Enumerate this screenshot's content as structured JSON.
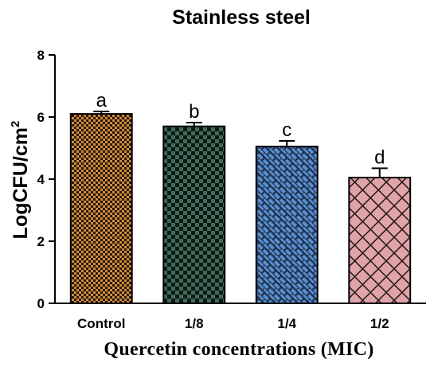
{
  "chart_data": {
    "type": "bar",
    "title": "Stainless steel",
    "xlabel": "Quercetin concentrations (MIC)",
    "ylabel": "LogCFU/cm",
    "ylabel_superscript": "2",
    "ylim": [
      0,
      8
    ],
    "yticks": [
      "0",
      "2",
      "4",
      "6",
      "8"
    ],
    "categories": [
      "Control",
      "1/8",
      "1/4",
      "1/2"
    ],
    "values": [
      6.1,
      5.7,
      5.05,
      4.05
    ],
    "errors": [
      0.08,
      0.12,
      0.18,
      0.3
    ],
    "significance_letters": [
      "a",
      "b",
      "c",
      "d"
    ],
    "bar_colors": [
      "#d08a3c",
      "#3f6b58",
      "#5a8fd0",
      "#e0a3a8"
    ],
    "bar_patterns": [
      "fine-checker",
      "checker",
      "brick",
      "crosshatch"
    ],
    "grid": false,
    "legend": "none"
  }
}
